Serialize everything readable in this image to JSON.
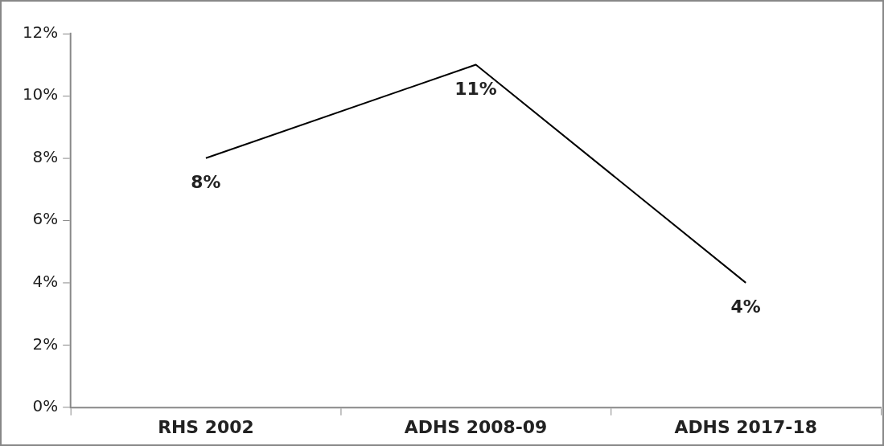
{
  "chart_data": {
    "type": "line",
    "categories": [
      "RHS 2002",
      "ADHS 2008-09",
      "ADHS 2017-18"
    ],
    "series": [
      {
        "color": "#000000",
        "values": [
          8,
          11,
          4
        ],
        "value_labels": [
          "8%",
          "11%",
          "4%"
        ]
      }
    ],
    "ylim": [
      0,
      12
    ],
    "yticks": [
      {
        "value": 0,
        "label": "0%"
      },
      {
        "value": 2,
        "label": "2%"
      },
      {
        "value": 4,
        "label": "4%"
      },
      {
        "value": 6,
        "label": "6%"
      },
      {
        "value": 8,
        "label": "8%"
      },
      {
        "value": 10,
        "label": "10%"
      },
      {
        "value": 12,
        "label": "12%"
      }
    ],
    "grid": false,
    "legend": false,
    "marker": "none",
    "line_style": "solid"
  }
}
